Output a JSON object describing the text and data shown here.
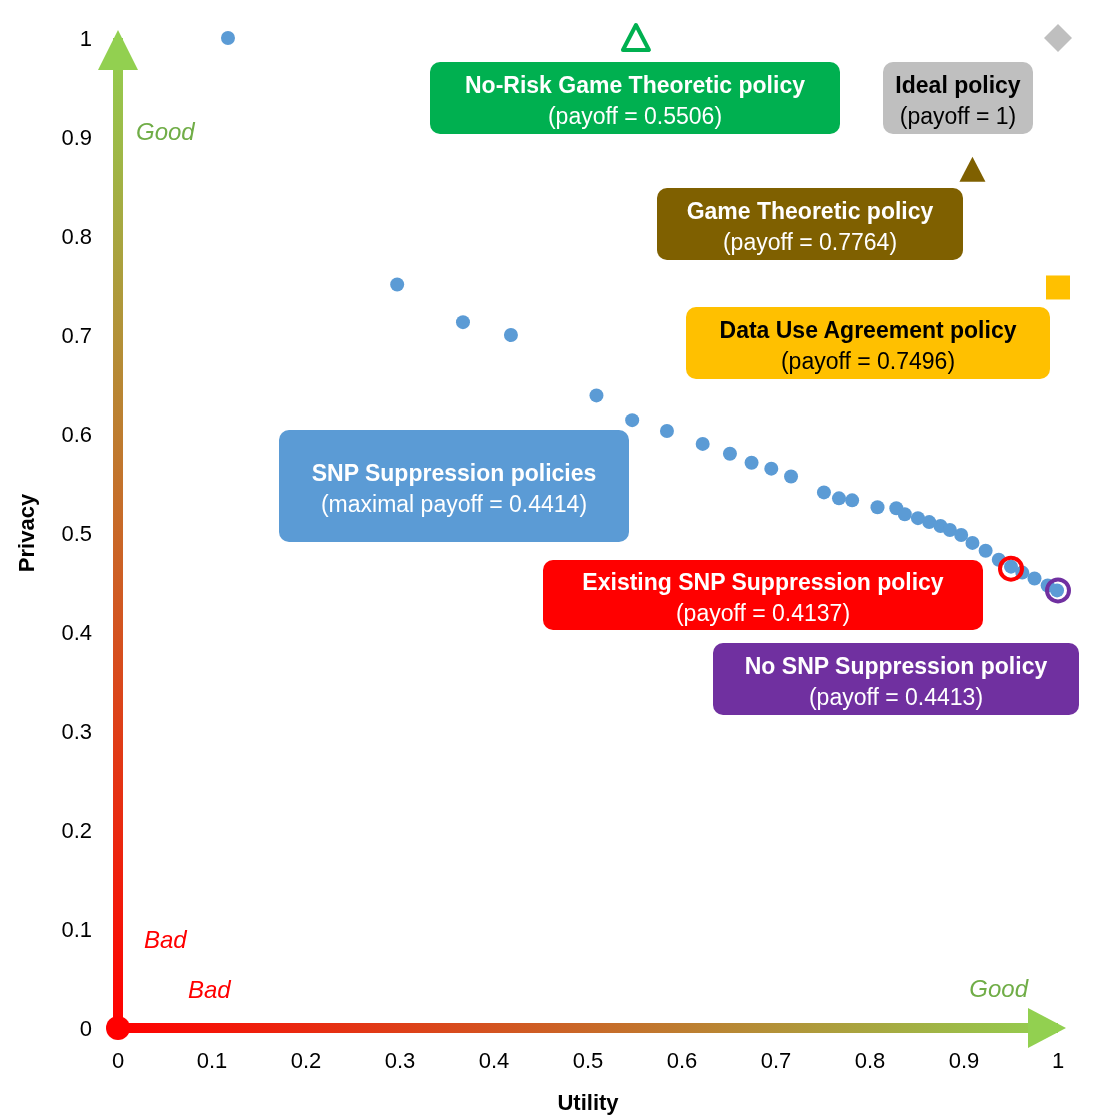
{
  "chart_data": {
    "type": "scatter",
    "xlabel": "Utility",
    "ylabel": "Privacy",
    "xlim": [
      0,
      1
    ],
    "ylim": [
      0,
      1
    ],
    "xticks": [
      0,
      0.1,
      0.2,
      0.3,
      0.4,
      0.5,
      0.6,
      0.7,
      0.8,
      0.9,
      1
    ],
    "yticks": [
      0,
      0.1,
      0.2,
      0.3,
      0.4,
      0.5,
      0.6,
      0.7,
      0.8,
      0.9,
      1
    ],
    "grid": false,
    "series": [
      {
        "name": "SNP Suppression policies",
        "color": "#5b9bd5",
        "marker": "circle",
        "x": [
          0.117,
          0.297,
          0.367,
          0.418,
          0.509,
          0.547,
          0.584,
          0.622,
          0.651,
          0.674,
          0.695,
          0.716,
          0.751,
          0.767,
          0.781,
          0.808,
          0.828,
          0.837,
          0.851,
          0.863,
          0.875,
          0.885,
          0.897,
          0.909,
          0.923,
          0.937,
          0.95,
          0.962,
          0.975,
          0.989,
          0.999
        ],
        "values": [
          1,
          0.751,
          0.713,
          0.7,
          0.639,
          0.614,
          0.603,
          0.59,
          0.58,
          0.571,
          0.565,
          0.557,
          0.541,
          0.535,
          0.533,
          0.526,
          0.525,
          0.519,
          0.515,
          0.511,
          0.507,
          0.503,
          0.498,
          0.49,
          0.482,
          0.473,
          0.466,
          0.46,
          0.454,
          0.447,
          0.442
        ]
      },
      {
        "name": "Existing SNP Suppression policy",
        "color": "#ff0000",
        "marker": "circle",
        "x": [
          0.95
        ],
        "values": [
          0.464
        ]
      },
      {
        "name": "No SNP Suppression policy",
        "color": "#7030a0",
        "marker": "circle",
        "x": [
          1
        ],
        "values": [
          0.442
        ]
      },
      {
        "name": "Data Use Agreement policy",
        "color": "#ffc000",
        "marker": "square",
        "x": [
          1
        ],
        "values": [
          0.748
        ]
      },
      {
        "name": "Game Theoretic policy",
        "color": "#7f6000",
        "marker": "triangle",
        "x": [
          0.909
        ],
        "values": [
          0.867
        ]
      },
      {
        "name": "Ideal policy",
        "color": "#bfbfbf",
        "marker": "diamond",
        "x": [
          1
        ],
        "values": [
          1
        ]
      },
      {
        "name": "No-Risk Game Theoretic policy",
        "color": "#00b050",
        "marker": "triangle",
        "x": [
          0.551
        ],
        "values": [
          1
        ]
      }
    ],
    "annotations": [
      "(maximal payoff = 0.4414)",
      "(payoff = 0.4137)",
      "(payoff = 0.4413)",
      "(payoff = 0.7496)",
      "(payoff = 0.7764)",
      "(payoff = 1)",
      "(payoff = 0.5506)",
      "Good",
      "Bad",
      "Bad",
      "Good"
    ]
  }
}
